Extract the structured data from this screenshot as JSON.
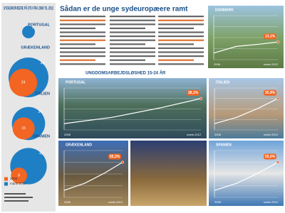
{
  "sidebar": {
    "title": "SYDEUROPÆERE PÅ DTU FRA 2008 TIL 2012",
    "legend": [
      "2008",
      "marts 2012"
    ],
    "countries": [
      {
        "name": "PORTUGAL",
        "y2012": 5
      },
      {
        "name": "GRÆKENLAND",
        "y2008": 24,
        "y2012": 49
      },
      {
        "name": "ITALIEN",
        "y2008": 15,
        "y2012": 34
      },
      {
        "name": "SPANIEN",
        "y2008": 8,
        "y2012": 41
      }
    ]
  },
  "article": {
    "title": "Sådan er de unge sydeuropæere ramt",
    "section": "UNGDOMSARBEJDSLØSHED 15-24 ÅR"
  },
  "axis": {
    "start": "2008",
    "end": "marts 2012"
  },
  "panels": [
    {
      "country": "DANMARK",
      "rate": "13,1%"
    },
    {
      "country": "PORTUGAL",
      "rate": "38,1%"
    },
    {
      "country": "ITALIEN",
      "rate": "35,9%"
    },
    {
      "country": "GRÆKENLAND",
      "rate": "55,3%"
    },
    {
      "country": "SPANIEN",
      "rate": "55,2%"
    }
  ]
}
